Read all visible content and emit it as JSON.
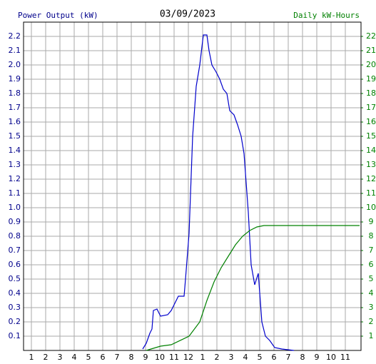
{
  "chart_data": {
    "type": "line",
    "title": "03/09/2023",
    "y_label": "Power Output (kW)",
    "y2_label": "Daily kW-Hours",
    "grid": true,
    "xlim": [
      0.45,
      24.1
    ],
    "xticks": [
      1,
      2,
      3,
      4,
      5,
      6,
      7,
      8,
      9,
      10,
      11,
      12,
      {
        "value": 13,
        "label": "1"
      },
      {
        "value": 14,
        "label": "2"
      },
      {
        "value": 15,
        "label": "3"
      },
      {
        "value": 16,
        "label": "4"
      },
      {
        "value": 17,
        "label": "5"
      },
      {
        "value": 18,
        "label": "6"
      },
      {
        "value": 19,
        "label": "7"
      },
      {
        "value": 20,
        "label": "8"
      },
      {
        "value": 21,
        "label": "9"
      },
      {
        "value": 22,
        "label": "10"
      },
      {
        "value": 23,
        "label": "11"
      }
    ],
    "ylim": [
      0,
      2.3
    ],
    "yticks": [
      0.1,
      0.2,
      0.3,
      0.4,
      0.5,
      0.6,
      0.7,
      0.8,
      0.9,
      {
        "value": 1,
        "label": "1.0"
      },
      1.1,
      1.2,
      1.3,
      1.4,
      1.5,
      1.6,
      1.7,
      1.8,
      1.9,
      {
        "value": 2,
        "label": "2.0"
      },
      2.1,
      2.2
    ],
    "y2lim": [
      0,
      23
    ],
    "y2ticks": [
      1,
      2,
      3,
      4,
      5,
      6,
      7,
      8,
      9,
      10,
      11,
      12,
      13,
      14,
      15,
      16,
      17,
      18,
      19,
      20,
      21,
      22
    ],
    "series": [
      {
        "name": "Power Output (kW)",
        "color": "#0000cc",
        "x": [
          8.8,
          9.05,
          9.3,
          9.45,
          9.55,
          9.8,
          10.05,
          10.55,
          10.8,
          11.05,
          11.3,
          11.7,
          11.8,
          12.05,
          12.3,
          12.55,
          12.8,
          13.05,
          13.3,
          13.45,
          13.65,
          13.95,
          14.2,
          14.45,
          14.7,
          14.9,
          15.2,
          15.45,
          15.7,
          15.9,
          16.2,
          16.4,
          16.65,
          16.9,
          17.15,
          17.4,
          17.7,
          18.05,
          18.55,
          19.4
        ],
        "values": [
          0.01,
          0.05,
          0.12,
          0.15,
          0.28,
          0.29,
          0.24,
          0.25,
          0.28,
          0.33,
          0.38,
          0.38,
          0.5,
          0.82,
          1.5,
          1.85,
          2.0,
          2.21,
          2.21,
          2.1,
          2.0,
          1.95,
          1.9,
          1.83,
          1.8,
          1.68,
          1.65,
          1.58,
          1.5,
          1.38,
          0.97,
          0.6,
          0.46,
          0.54,
          0.2,
          0.1,
          0.07,
          0.02,
          0.01,
          0
        ]
      },
      {
        "name": "Daily kW-Hours",
        "color": "#008000",
        "axis": "y2",
        "x": [
          9.05,
          10.05,
          10.8,
          12.05,
          12.8,
          13.3,
          13.8,
          14.3,
          14.8,
          15.3,
          15.8,
          16.3,
          16.8,
          17.3,
          24.0
        ],
        "values": [
          0,
          0.3,
          0.4,
          1.0,
          2.0,
          3.5,
          4.8,
          5.8,
          6.6,
          7.4,
          8.0,
          8.4,
          8.65,
          8.75,
          8.75
        ]
      }
    ]
  }
}
